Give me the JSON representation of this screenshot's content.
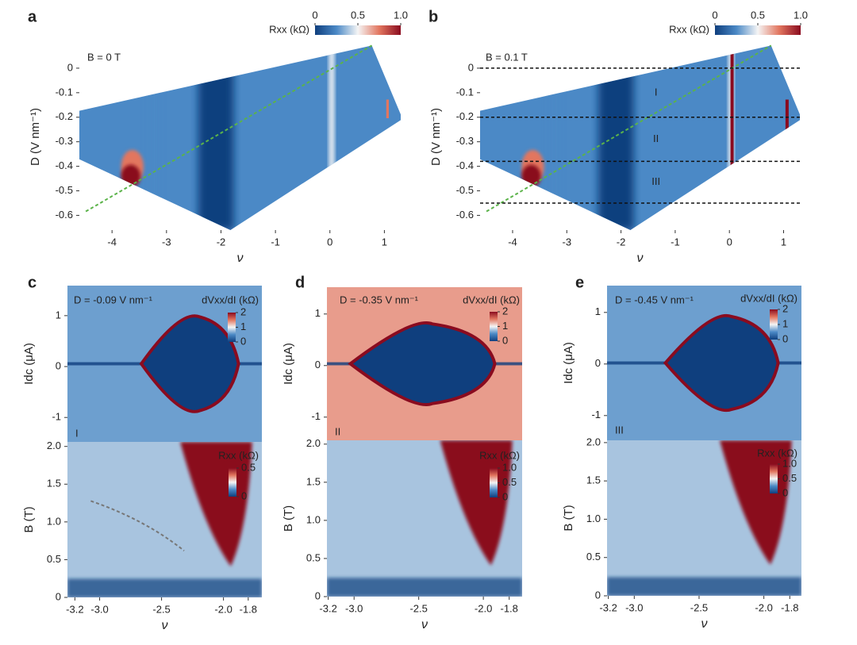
{
  "chart_data": [
    {
      "type": "heatmap",
      "panel": "a",
      "annotation": "B = 0 T",
      "xlabel": "ν",
      "ylabel": "D (V nm⁻¹)",
      "xlim": [
        -4.6,
        1.3
      ],
      "xticks": [
        -4,
        -3,
        -2,
        -1,
        0,
        1
      ],
      "ylim": [
        -0.66,
        0.1
      ],
      "yticks": [
        0,
        -0.1,
        -0.2,
        -0.3,
        -0.4,
        -0.5,
        -0.6
      ],
      "colorbar": {
        "label": "Rxx (kΩ)",
        "lim": [
          0,
          1
        ],
        "ticks": [
          0,
          0.5,
          {
            "value": 1,
            "label": "1.0"
          }
        ]
      },
      "colormap": [
        "#0f3f7e",
        "#4b89c6",
        "#f5f5f5",
        "#e2765f",
        "#8a0b1f"
      ]
    },
    {
      "type": "heatmap",
      "panel": "b",
      "annotation": "B = 0.1 T",
      "xlabel": "ν",
      "ylabel": "D (V nm⁻¹)",
      "xlim": [
        -4.6,
        1.3
      ],
      "xticks": [
        -4,
        -3,
        -2,
        -1,
        0,
        1
      ],
      "ylim": [
        -0.66,
        0.1
      ],
      "yticks": [
        0,
        -0.1,
        -0.2,
        -0.3,
        -0.4,
        -0.5,
        -0.6
      ],
      "hlines": [
        0,
        -0.2,
        -0.38,
        -0.55
      ],
      "regions": [
        "I",
        "II",
        "III"
      ],
      "colorbar": {
        "label": "Rxx (kΩ)",
        "lim": [
          0,
          1
        ],
        "ticks": [
          0,
          0.5,
          {
            "value": 1,
            "label": "1.0"
          }
        ]
      },
      "colormap": [
        "#0f3f7e",
        "#4b89c6",
        "#f5f5f5",
        "#e2765f",
        "#8a0b1f"
      ]
    },
    {
      "type": "heatmap",
      "panel": "c",
      "annotation": "D = -0.09 V nm⁻¹",
      "region": "I",
      "ylabel": "Idc (μA)",
      "xlim": [
        -3.26,
        -1.69
      ],
      "ylim": [
        -1.48,
        1.59
      ],
      "yticks": [
        -1,
        0,
        1
      ],
      "colorbar": {
        "label": "dVxx/dI (kΩ)",
        "lim": [
          0,
          2
        ],
        "ticks": [
          0,
          1,
          2
        ]
      },
      "colormap": [
        "#0f3f7e",
        "#4b89c6",
        "#f5f5f5",
        "#e2765f",
        "#8a0b1f"
      ]
    },
    {
      "type": "heatmap",
      "xlabel": "ν",
      "ylabel": "B (T)",
      "xlim": [
        -3.26,
        -1.69
      ],
      "xticks": [
        -3.2,
        {
          "value": -3,
          "label": "-3.0"
        },
        -2.5,
        {
          "value": -2,
          "label": "-2.0"
        },
        -1.8
      ],
      "ylim": [
        0,
        2.06
      ],
      "yticks": [
        0,
        0.5,
        {
          "value": 1,
          "label": "1.0"
        },
        1.5,
        {
          "value": 2,
          "label": "2.0"
        }
      ],
      "colorbar": {
        "label": "Rxx (kΩ)",
        "lim": [
          0,
          0.5
        ],
        "ticks": [
          0,
          0.5
        ]
      },
      "colormap": [
        "#0f3f7e",
        "#4b89c6",
        "#f5f5f5",
        "#e2765f",
        "#8a0b1f"
      ]
    },
    {
      "type": "heatmap",
      "panel": "d",
      "annotation": "D = -0.35 V nm⁻¹",
      "region": "II",
      "ylabel": "Idc (μA)",
      "xlim": [
        -3.21,
        -1.7
      ],
      "ylim": [
        -1.45,
        1.52
      ],
      "yticks": [
        -1,
        0,
        1
      ],
      "colorbar": {
        "label": "dVxx/dI (kΩ)",
        "lim": [
          0,
          2
        ],
        "ticks": [
          0,
          1,
          2
        ]
      },
      "colormap": [
        "#0f3f7e",
        "#4b89c6",
        "#f5f5f5",
        "#e2765f",
        "#8a0b1f"
      ]
    },
    {
      "type": "heatmap",
      "xlabel": "ν",
      "ylabel": "B (T)",
      "xlim": [
        -3.21,
        -1.7
      ],
      "xticks": [
        -3.2,
        {
          "value": -3,
          "label": "-3.0"
        },
        -2.5,
        {
          "value": -2,
          "label": "-2.0"
        },
        -1.8
      ],
      "ylim": [
        0,
        2.05
      ],
      "yticks": [
        0,
        0.5,
        {
          "value": 1,
          "label": "1.0"
        },
        1.5,
        {
          "value": 2,
          "label": "2.0"
        }
      ],
      "colorbar": {
        "label": "Rxx (kΩ)",
        "lim": [
          0,
          1
        ],
        "ticks": [
          0,
          0.5,
          {
            "value": 1,
            "label": "1.0"
          }
        ]
      },
      "colormap": [
        "#0f3f7e",
        "#4b89c6",
        "#f5f5f5",
        "#e2765f",
        "#8a0b1f"
      ]
    },
    {
      "type": "heatmap",
      "panel": "e",
      "annotation": "D = -0.45 V nm⁻¹",
      "region": "III",
      "ylabel": "Idc (μA)",
      "xlim": [
        -3.21,
        -1.71
      ],
      "ylim": [
        -1.48,
        1.52
      ],
      "yticks": [
        -1,
        0,
        1
      ],
      "colorbar": {
        "label": "dVxx/dI (kΩ)",
        "lim": [
          0,
          2
        ],
        "ticks": [
          0,
          1,
          2
        ]
      },
      "colormap": [
        "#0f3f7e",
        "#4b89c6",
        "#f5f5f5",
        "#e2765f",
        "#8a0b1f"
      ]
    },
    {
      "type": "heatmap",
      "xlabel": "ν",
      "ylabel": "B (T)",
      "xlim": [
        -3.21,
        -1.71
      ],
      "xticks": [
        -3.2,
        {
          "value": -3,
          "label": "-3.0"
        },
        -2.5,
        {
          "value": -2,
          "label": "-2.0"
        },
        -1.8
      ],
      "ylim": [
        0,
        2.03
      ],
      "yticks": [
        0,
        0.5,
        {
          "value": 1,
          "label": "1.0"
        },
        1.5,
        {
          "value": 2,
          "label": "2.0"
        }
      ],
      "colorbar": {
        "label": "Rxx (kΩ)",
        "lim": [
          0,
          1
        ],
        "ticks": [
          0,
          0.5,
          {
            "value": 1,
            "label": "1.0"
          }
        ]
      },
      "colormap": [
        "#0f3f7e",
        "#4b89c6",
        "#f5f5f5",
        "#e2765f",
        "#8a0b1f"
      ]
    }
  ]
}
